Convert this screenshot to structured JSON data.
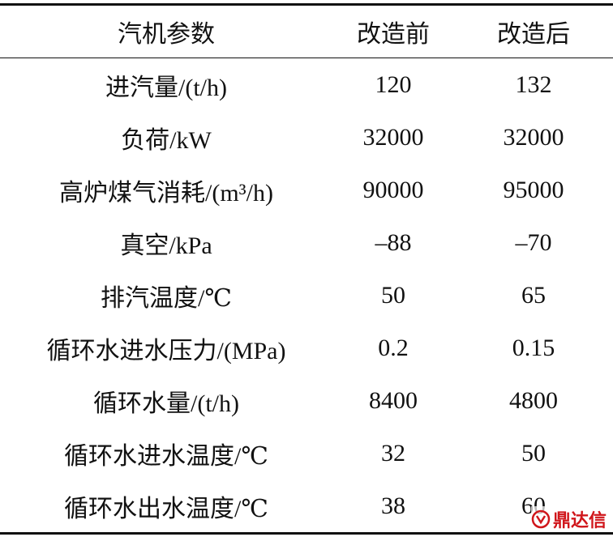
{
  "table": {
    "header": [
      "汽机参数",
      "改造前",
      "改造后"
    ],
    "rows": [
      [
        "进汽量/(t/h)",
        "120",
        "132"
      ],
      [
        "负荷/kW",
        "32000",
        "32000"
      ],
      [
        "高炉煤气消耗/(m³/h)",
        "90000",
        "95000"
      ],
      [
        "真空/kPa",
        "–88",
        "–70"
      ],
      [
        "排汽温度/℃",
        "50",
        "65"
      ],
      [
        "循环水进水压力/(MPa)",
        "0.2",
        "0.15"
      ],
      [
        "循环水量/(t/h)",
        "8400",
        "4800"
      ],
      [
        "循环水进水温度/℃",
        "32",
        "50"
      ],
      [
        "循环水出水温度/℃",
        "38",
        "60"
      ]
    ]
  },
  "watermark": "鼎达信"
}
